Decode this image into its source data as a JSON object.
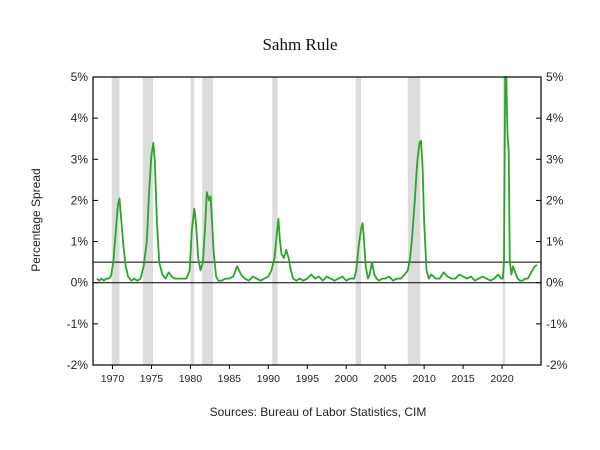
{
  "chart_data": {
    "type": "line",
    "title": "Sahm Rule",
    "ylabel": "Percentage Spread",
    "source": "Sources: Bureau of Labor Statistics, CIM",
    "xlim": [
      1967.5,
      2025
    ],
    "ylim": [
      -2,
      5
    ],
    "y_ticks": [
      -2,
      -1,
      0,
      1,
      2,
      3,
      4,
      5
    ],
    "y_tick_labels": [
      "-2%",
      "-1%",
      "0%",
      "1%",
      "2%",
      "3%",
      "4%",
      "5%"
    ],
    "x_ticks": [
      1970,
      1975,
      1980,
      1985,
      1990,
      1995,
      2000,
      2005,
      2010,
      2015,
      2020
    ],
    "x_tick_labels": [
      "1970",
      "1975",
      "1980",
      "1985",
      "1990",
      "1995",
      "2000",
      "2005",
      "2010",
      "2015",
      "2020"
    ],
    "reference_lines": [
      0,
      0.5
    ],
    "recession_shading": [
      [
        1969.9,
        1970.9
      ],
      [
        1973.9,
        1975.2
      ],
      [
        1980.0,
        1980.5
      ],
      [
        1981.5,
        1982.9
      ],
      [
        1990.5,
        1991.2
      ],
      [
        2001.2,
        2001.9
      ],
      [
        2007.9,
        2009.5
      ],
      [
        2020.1,
        2020.4
      ]
    ],
    "line_color": "#2aa52a",
    "shading_color": "#dcdcdc",
    "series": [
      {
        "x": [
          1968.0,
          1968.3,
          1968.6,
          1968.9,
          1969.2,
          1969.5,
          1969.8,
          1970.1,
          1970.4,
          1970.7,
          1970.9,
          1971.1,
          1971.4,
          1971.7,
          1972.0,
          1972.4,
          1972.8,
          1973.2,
          1973.6,
          1974.0,
          1974.4,
          1974.7,
          1975.0,
          1975.25,
          1975.45,
          1975.7,
          1976.0,
          1976.4,
          1976.8,
          1977.2,
          1977.6,
          1978.0,
          1978.5,
          1979.0,
          1979.5,
          1979.9,
          1980.2,
          1980.5,
          1980.7,
          1981.0,
          1981.3,
          1981.6,
          1981.9,
          1982.1,
          1982.4,
          1982.6,
          1982.8,
          1983.0,
          1983.3,
          1983.6,
          1984.0,
          1984.5,
          1985.0,
          1985.5,
          1986.0,
          1986.5,
          1987.0,
          1987.5,
          1988.0,
          1988.5,
          1989.0,
          1989.5,
          1990.0,
          1990.4,
          1990.8,
          1991.1,
          1991.3,
          1991.5,
          1991.7,
          1992.0,
          1992.3,
          1992.6,
          1992.9,
          1993.2,
          1993.6,
          1994.0,
          1994.5,
          1995.0,
          1995.5,
          1996.0,
          1996.5,
          1997.0,
          1997.5,
          1998.0,
          1998.5,
          1999.0,
          1999.5,
          2000.0,
          2000.5,
          2001.0,
          2001.3,
          2001.6,
          2001.9,
          2002.1,
          2002.3,
          2002.5,
          2002.8,
          2003.0,
          2003.3,
          2003.6,
          2003.9,
          2004.2,
          2004.6,
          2005.0,
          2005.5,
          2006.0,
          2006.5,
          2007.0,
          2007.5,
          2007.9,
          2008.2,
          2008.5,
          2008.8,
          2009.1,
          2009.4,
          2009.6,
          2009.8,
          2010.0,
          2010.3,
          2010.6,
          2010.9,
          2011.2,
          2011.5,
          2012.0,
          2012.5,
          2013.0,
          2013.5,
          2014.0,
          2014.5,
          2015.0,
          2015.5,
          2016.0,
          2016.5,
          2017.0,
          2017.5,
          2018.0,
          2018.5,
          2019.0,
          2019.5,
          2019.9,
          2020.1,
          2020.25,
          2020.4,
          2020.55,
          2020.7,
          2020.85,
          2021.0,
          2021.2,
          2021.4,
          2021.6,
          2021.8,
          2022.0,
          2022.3,
          2022.6,
          2023.0,
          2023.3,
          2023.6,
          2023.9,
          2024.2,
          2024.5
        ],
        "values": [
          0.1,
          0.05,
          0.1,
          0.05,
          0.1,
          0.1,
          0.15,
          0.5,
          1.2,
          1.9,
          2.05,
          1.6,
          0.9,
          0.4,
          0.15,
          0.05,
          0.1,
          0.05,
          0.1,
          0.4,
          1.0,
          2.2,
          3.1,
          3.4,
          2.9,
          1.5,
          0.5,
          0.2,
          0.1,
          0.25,
          0.15,
          0.1,
          0.1,
          0.1,
          0.1,
          0.3,
          1.3,
          1.8,
          1.5,
          0.6,
          0.3,
          0.5,
          1.4,
          2.2,
          2.0,
          2.1,
          1.4,
          0.7,
          0.15,
          0.05,
          0.05,
          0.1,
          0.1,
          0.15,
          0.4,
          0.2,
          0.1,
          0.05,
          0.15,
          0.1,
          0.05,
          0.1,
          0.15,
          0.3,
          0.6,
          1.2,
          1.55,
          1.0,
          0.7,
          0.6,
          0.8,
          0.6,
          0.3,
          0.1,
          0.05,
          0.1,
          0.05,
          0.1,
          0.2,
          0.1,
          0.15,
          0.05,
          0.15,
          0.1,
          0.05,
          0.1,
          0.15,
          0.05,
          0.1,
          0.1,
          0.3,
          0.9,
          1.3,
          1.45,
          1.0,
          0.4,
          0.1,
          0.2,
          0.5,
          0.2,
          0.1,
          0.05,
          0.1,
          0.1,
          0.15,
          0.05,
          0.1,
          0.1,
          0.2,
          0.3,
          0.6,
          1.2,
          2.0,
          2.9,
          3.4,
          3.45,
          2.8,
          1.5,
          0.3,
          0.1,
          0.2,
          0.15,
          0.1,
          0.1,
          0.25,
          0.15,
          0.1,
          0.1,
          0.2,
          0.15,
          0.1,
          0.15,
          0.05,
          0.1,
          0.15,
          0.1,
          0.05,
          0.1,
          0.2,
          0.1,
          0.1,
          0.5,
          5.0,
          5.0,
          3.6,
          3.2,
          0.5,
          0.2,
          0.4,
          0.3,
          0.2,
          0.1,
          0.05,
          0.05,
          0.1,
          0.1,
          0.2,
          0.3,
          0.4,
          0.43
        ]
      }
    ]
  }
}
